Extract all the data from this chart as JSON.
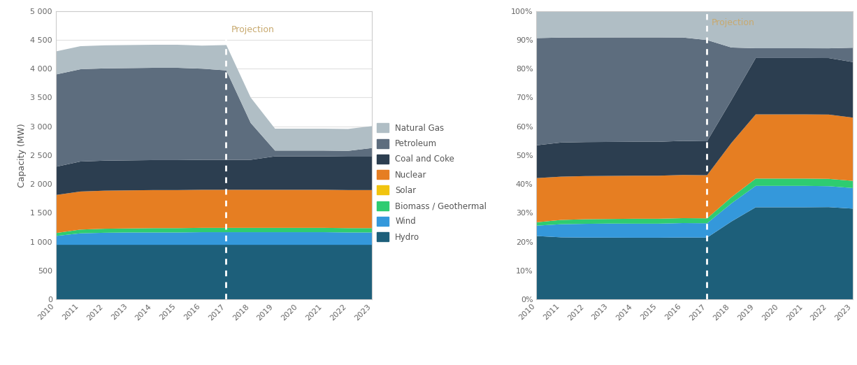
{
  "years": [
    2010,
    2011,
    2012,
    2013,
    2014,
    2015,
    2016,
    2017,
    2018,
    2019,
    2020,
    2021,
    2022,
    2023
  ],
  "layers": {
    "Hydro": [
      950,
      950,
      950,
      950,
      950,
      950,
      950,
      950,
      950,
      950,
      950,
      950,
      950,
      950
    ],
    "Wind": [
      155,
      200,
      210,
      215,
      215,
      215,
      220,
      220,
      220,
      220,
      220,
      220,
      215,
      215
    ],
    "Biomass / Geothermal": [
      50,
      65,
      70,
      70,
      75,
      75,
      75,
      75,
      75,
      75,
      75,
      75,
      75,
      75
    ],
    "Solar": [
      0,
      0,
      0,
      0,
      0,
      0,
      0,
      0,
      0,
      0,
      0,
      0,
      0,
      0
    ],
    "Nuclear": [
      660,
      660,
      660,
      660,
      660,
      660,
      660,
      660,
      660,
      660,
      660,
      660,
      660,
      660
    ],
    "Coal and Coke": [
      490,
      520,
      520,
      520,
      520,
      520,
      520,
      520,
      520,
      580,
      580,
      580,
      580,
      580
    ],
    "Petroleum": [
      1600,
      1600,
      1600,
      1600,
      1600,
      1600,
      1580,
      1550,
      640,
      100,
      100,
      100,
      100,
      150
    ],
    "Natural Gas": [
      400,
      400,
      400,
      400,
      400,
      400,
      400,
      440,
      440,
      380,
      380,
      380,
      380,
      380
    ]
  },
  "colors": {
    "Hydro": "#1d5f7a",
    "Wind": "#3498db",
    "Biomass / Geothermal": "#2ecc71",
    "Solar": "#f1c40f",
    "Nuclear": "#e67e22",
    "Coal and Coke": "#2c3e50",
    "Petroleum": "#5d6d7e",
    "Natural Gas": "#b0bec5"
  },
  "stack_order": [
    "Hydro",
    "Wind",
    "Biomass / Geothermal",
    "Solar",
    "Nuclear",
    "Coal and Coke",
    "Petroleum",
    "Natural Gas"
  ],
  "legend_order": [
    "Natural Gas",
    "Petroleum",
    "Coal and Coke",
    "Nuclear",
    "Solar",
    "Biomass / Geothermal",
    "Wind",
    "Hydro"
  ],
  "projection_year": 2017,
  "ylabel_left": "Capacity (MW)",
  "ylim_left": [
    0,
    5000
  ],
  "yticks_left": [
    0,
    500,
    1000,
    1500,
    2000,
    2500,
    3000,
    3500,
    4000,
    4500,
    5000
  ],
  "ytick_labels_left": [
    "0",
    "500",
    "1 000",
    "1 500",
    "2 000",
    "2 500",
    "3 000",
    "3 500",
    "4 000",
    "4 500",
    "5 000"
  ],
  "ylim_right": [
    0,
    1.0
  ],
  "yticks_right": [
    0.0,
    0.1,
    0.2,
    0.3,
    0.4,
    0.5,
    0.6,
    0.7,
    0.8,
    0.9,
    1.0
  ],
  "ytick_labels_right": [
    "0%",
    "10%",
    "20%",
    "30%",
    "40%",
    "50%",
    "60%",
    "70%",
    "80%",
    "90%",
    "100%"
  ],
  "projection_label": "Projection",
  "projection_text_color": "#c8a96e",
  "bg_color": "#ffffff",
  "plot_bg_color": "#ffffff",
  "grid_color": "#e0e0e0",
  "border_color": "#cccccc",
  "tick_color": "#666666",
  "label_color": "#555555"
}
